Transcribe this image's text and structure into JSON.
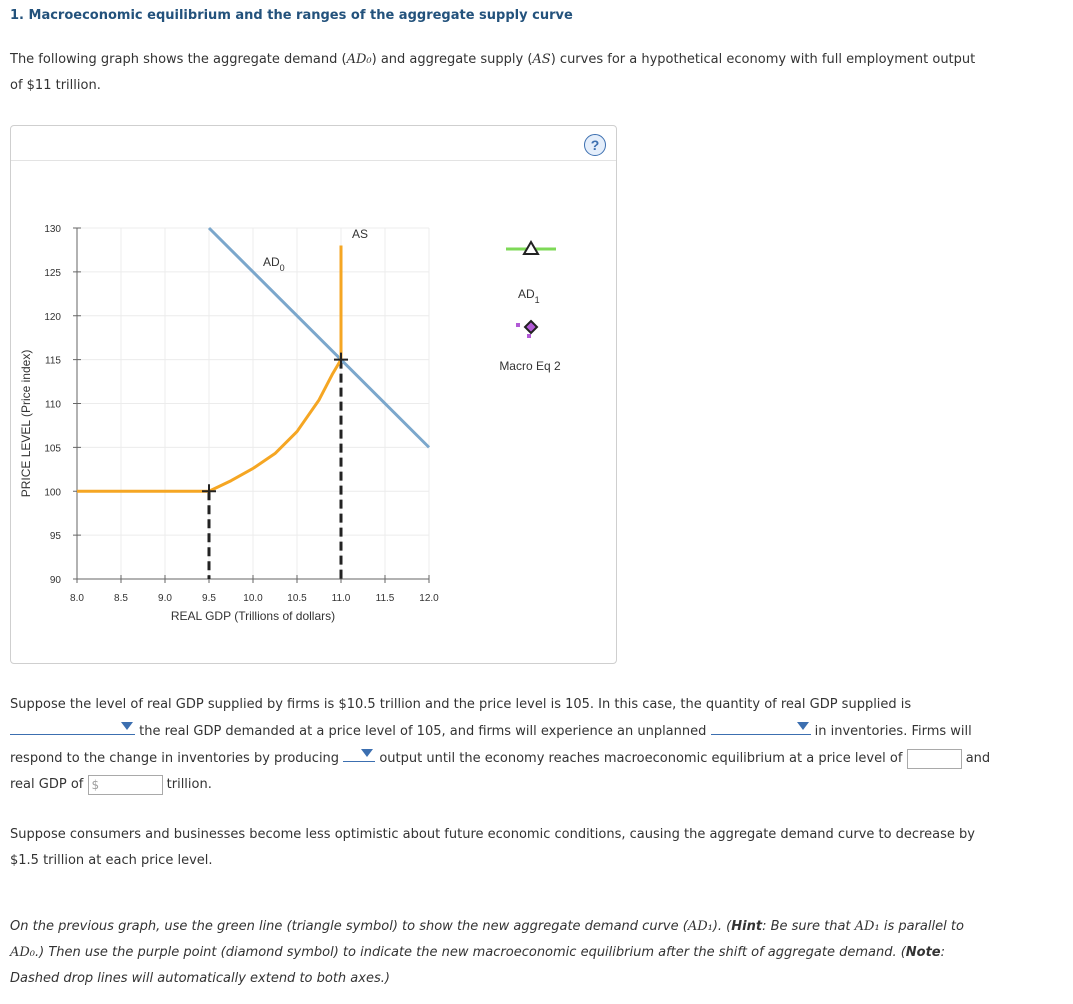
{
  "question": {
    "title": "1. Macroeconomic equilibrium and the ranges of the aggregate supply curve",
    "intro": {
      "p1": "The following graph shows the aggregate demand (",
      "ad0": "AD₀",
      "p2": ") and aggregate supply (",
      "as": "AS",
      "p3": ") curves for a hypothetical economy with full employment output",
      "line2": "of $11 trillion."
    }
  },
  "chart_data": {
    "type": "line",
    "xlabel": "REAL GDP (Trillions of dollars)",
    "ylabel": "PRICE LEVEL (Price index)",
    "xlim": [
      8.0,
      12.0
    ],
    "ylim": [
      90,
      130
    ],
    "x_ticks": [
      "8.0",
      "8.5",
      "9.0",
      "9.5",
      "10.0",
      "10.5",
      "11.0",
      "11.5",
      "12.0"
    ],
    "y_ticks": [
      "130",
      "125",
      "120",
      "115",
      "110",
      "105",
      "100",
      "95",
      "90"
    ],
    "grid": true,
    "series": [
      {
        "name": "AD0",
        "label_main": "AD",
        "label_sub": "0",
        "color": "#7ba7cc",
        "points": [
          [
            9.5,
            130
          ],
          [
            12.0,
            105
          ]
        ]
      },
      {
        "name": "AS",
        "label_main": "AS",
        "label_sub": "",
        "color": "#f5a623",
        "points": [
          [
            8.0,
            100
          ],
          [
            9.5,
            100
          ],
          [
            9.75,
            101.2
          ],
          [
            10.0,
            102.6
          ],
          [
            10.25,
            104.3
          ],
          [
            10.5,
            106.8
          ],
          [
            10.75,
            110.4
          ],
          [
            10.9,
            113.3
          ],
          [
            11.0,
            115
          ],
          [
            11.0,
            128
          ]
        ]
      }
    ],
    "markers": [
      {
        "x": 9.5,
        "y": 100
      },
      {
        "x": 11.0,
        "y": 115
      }
    ],
    "drop_lines": [
      {
        "x": 9.5,
        "y": 100
      },
      {
        "x": 11.0,
        "y": 115
      }
    ]
  },
  "palette": {
    "items": [
      {
        "name": "ad1",
        "label_main": "AD",
        "label_sub": "1",
        "color": "#7ed957"
      },
      {
        "name": "macro-eq-2",
        "label": "Macro Eq 2",
        "color": "#b25ad6"
      }
    ]
  },
  "help_icon": "?",
  "para2": {
    "l1": "Suppose the level of real GDP supplied by firms is $10.5 trillion and the price level is 105. In this case, the quantity of real GDP supplied is",
    "l2": "the real GDP demanded at a price level of 105, and firms will experience an unplanned",
    "l2b": "in inventories. Firms will",
    "l3a": "respond to the change in inventories by producing",
    "l3b": "output until the economy reaches macroeconomic equilibrium at a price level of",
    "l3c": "and",
    "l4a": "real GDP of",
    "l4_prefix": "$",
    "l4b": "trillion."
  },
  "para3": {
    "l1": "Suppose consumers and businesses become less optimistic about future economic conditions, causing the aggregate demand curve to decrease by",
    "l2": "$1.5 trillion at each price level."
  },
  "para4": {
    "a": "On the previous graph, use the green line (triangle symbol) to show the new aggregate demand curve (",
    "ad1": "AD₁",
    "b": "). (",
    "hint": "Hint",
    "c": ": Be sure that ",
    "ad1b": "AD₁",
    "d": " is parallel to",
    "ad0": "AD₀",
    "e": ".) Then use the purple point (diamond symbol) to indicate the new macroeconomic equilibrium after the shift of aggregate demand. (",
    "note": "Note",
    "f": ":",
    "g": "Dashed drop lines will automatically extend to both axes.)"
  }
}
